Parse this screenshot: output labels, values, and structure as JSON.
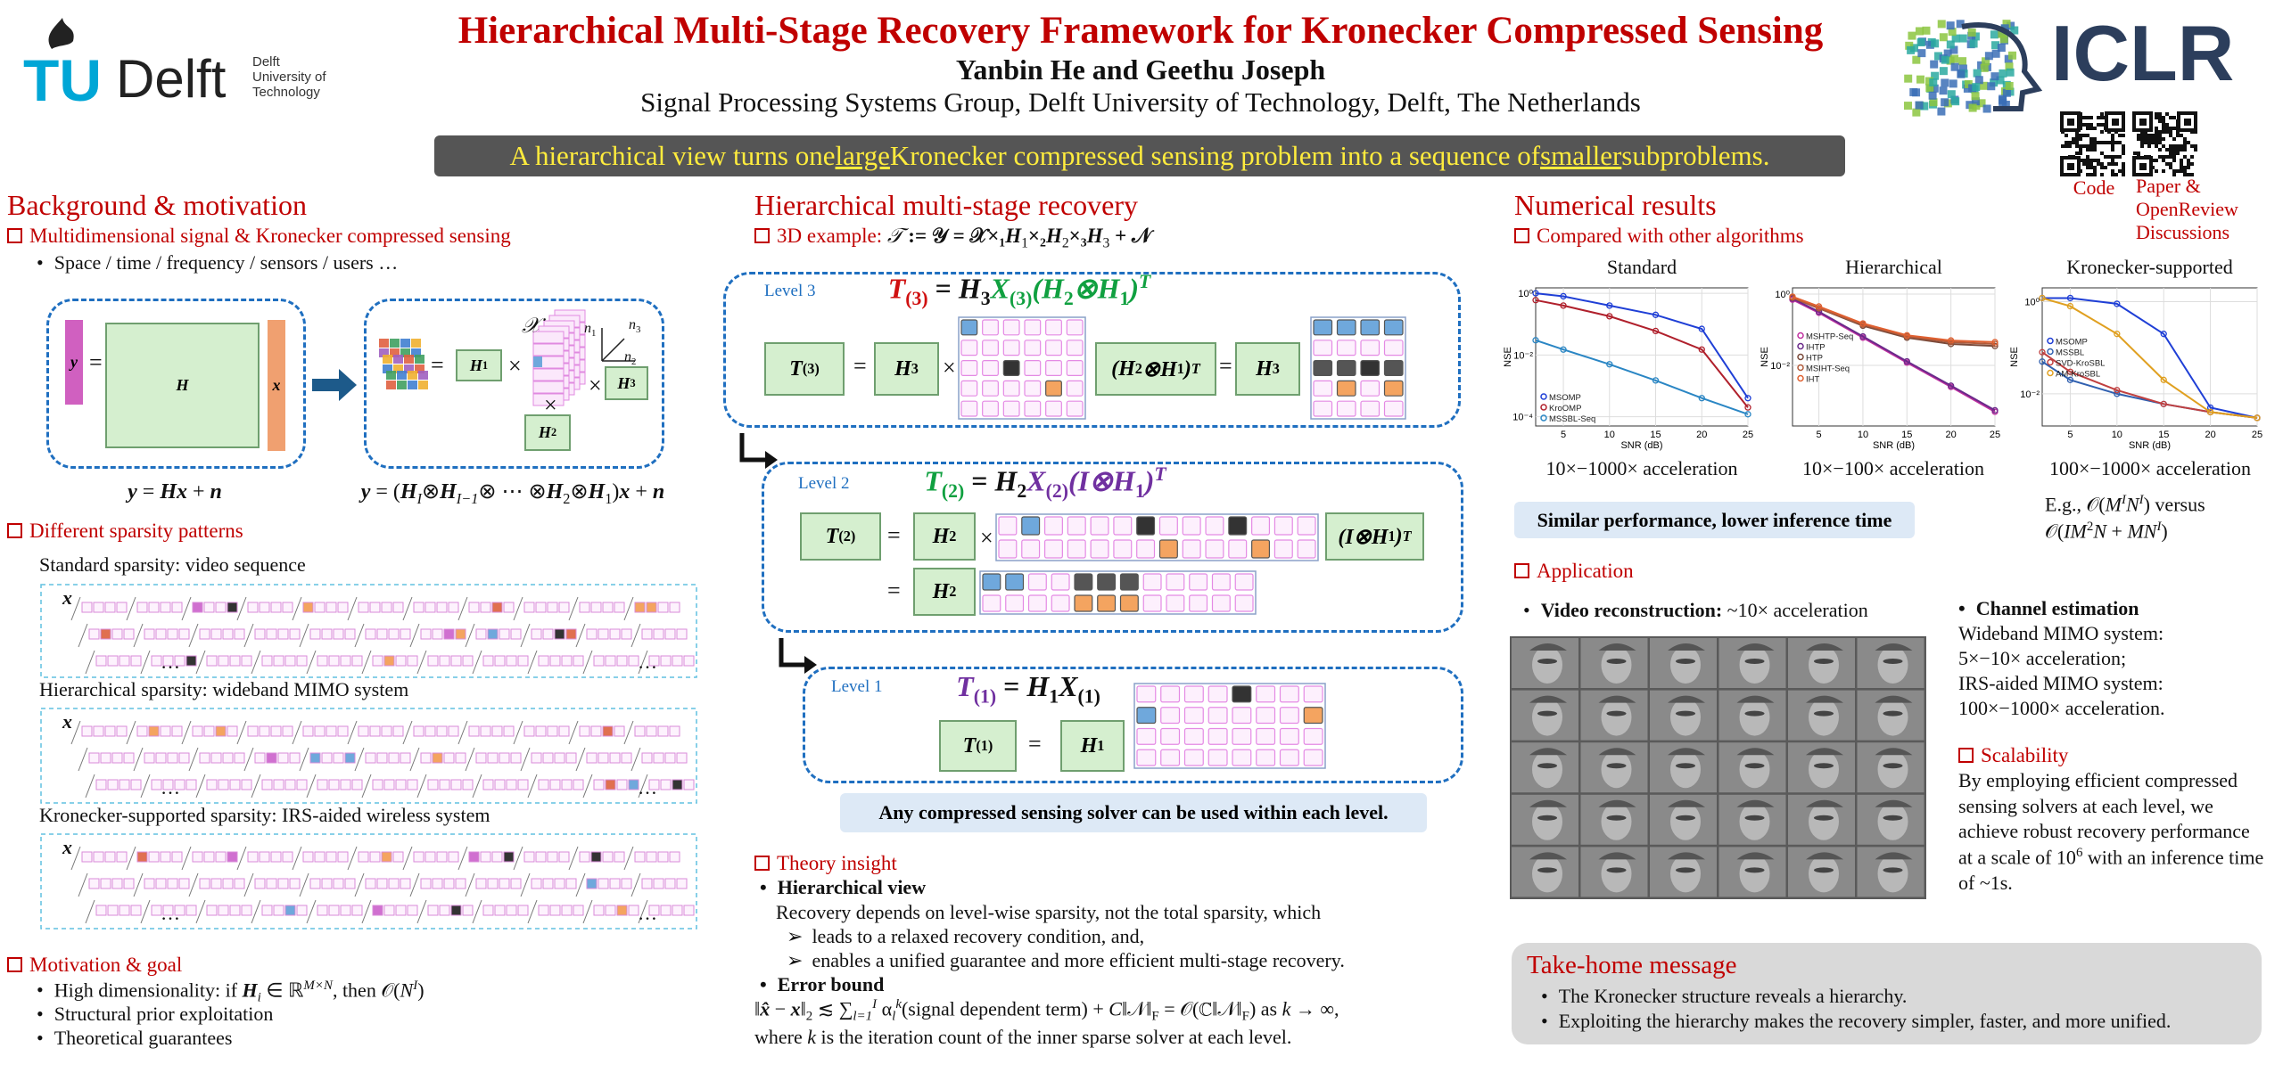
{
  "header": {
    "title": "Hierarchical Multi-Stage Recovery Framework for Kronecker Compressed Sensing",
    "authors": "Yanbin He and Geethu Joseph",
    "affiliation": "Signal Processing Systems Group, Delft University of Technology, Delft, The Netherlands",
    "tagline": [
      "A hierarchical view turns one ",
      [
        "large",
        "u"
      ],
      " Kronecker compressed sensing problem into a sequence of ",
      [
        "smaller",
        "u"
      ],
      " subproblems."
    ],
    "logo_tu": {
      "tu": "TU",
      "delft": "Delft",
      "lines": [
        "Delft",
        "University of",
        "Technology"
      ]
    },
    "logo_iclr": "ICLR",
    "links": {
      "code": "Code",
      "paper": "Paper & OpenReview Discussions"
    }
  },
  "left": {
    "heading": "Background & motivation",
    "s1": {
      "title": "Multidimensional signal & Kronecker compressed sensing",
      "bullet": "Space / time / frequency / sensors / users …",
      "diagram": {
        "y": [
          [
            "y",
            "bi"
          ]
        ],
        "eq": "=",
        "H": [
          [
            "H",
            "bi"
          ]
        ],
        "x": [
          [
            "x",
            "bi"
          ]
        ],
        "times": "×",
        "H1": [
          [
            "H",
            "bi"
          ],
          [
            "1",
            "sub b"
          ]
        ],
        "H2": [
          [
            "H",
            "bi"
          ],
          [
            "2",
            "sub b"
          ]
        ],
        "H3": [
          [
            "H",
            "bi"
          ],
          [
            "3",
            "sub b"
          ]
        ],
        "X": [
          [
            "𝒳",
            "i"
          ]
        ],
        "n1": [
          [
            "n",
            "i"
          ],
          [
            "1",
            "sub"
          ]
        ],
        "n2": [
          [
            "n",
            "i"
          ],
          [
            "2",
            "sub"
          ]
        ],
        "n3": [
          [
            "n",
            "i"
          ],
          [
            "3",
            "sub"
          ]
        ]
      },
      "eq1": [
        [
          "y",
          "bi"
        ],
        " = ",
        [
          "Hx",
          "bi"
        ],
        " + ",
        [
          "n",
          "bi"
        ]
      ],
      "eq2": [
        [
          "y",
          "bi"
        ],
        " = (",
        [
          "H",
          "bi"
        ],
        [
          "I",
          "sub i"
        ],
        "⊗",
        [
          "H",
          "bi"
        ],
        [
          "I−1",
          "sub i"
        ],
        "⊗ ⋯ ⊗",
        [
          "H",
          "bi"
        ],
        [
          "2",
          "sub"
        ],
        "⊗",
        [
          "H",
          "bi"
        ],
        [
          "1",
          "sub"
        ],
        ")",
        [
          "x",
          "bi"
        ],
        " + ",
        [
          "n",
          "bi"
        ]
      ]
    },
    "s2": {
      "title": "Different sparsity patterns",
      "patterns": [
        {
          "title": "Standard sparsity: video sequence",
          "label": [
            [
              "x",
              "bi"
            ]
          ],
          "more": "…"
        },
        {
          "title": "Hierarchical sparsity: wideband MIMO system",
          "label": [
            [
              "x",
              "bi"
            ]
          ],
          "more": "…"
        },
        {
          "title": "Kronecker-supported sparsity: IRS-aided wireless system",
          "label": [
            [
              "x",
              "bi"
            ]
          ],
          "more": "…"
        }
      ]
    },
    "s3": {
      "title": "Motivation & goal",
      "items": [
        [
          "High dimensionality: if ",
          [
            "H",
            "bi"
          ],
          [
            "i",
            "sub i"
          ],
          " ∈ ℝ",
          [
            "M×N",
            "sup i"
          ],
          ", then 𝒪(",
          [
            "N",
            "i"
          ],
          [
            "I",
            "sup i"
          ],
          ")"
        ],
        "Structural prior exploitation",
        "Theoretical guarantees"
      ]
    }
  },
  "middle": {
    "heading": "Hierarchical multi-stage recovery",
    "example": [
      "3D example: ",
      [
        "𝒯",
        "i blk"
      ],
      [
        " := 𝒴 = 𝒳×₁",
        "blk b"
      ],
      [
        "H",
        "bi blk"
      ],
      [
        "1",
        "sub blk"
      ],
      [
        "×₂",
        "blk b"
      ],
      [
        "H",
        "bi blk"
      ],
      [
        "2",
        "sub blk"
      ],
      [
        "×₃",
        "blk b"
      ],
      [
        "H",
        "bi blk"
      ],
      [
        "3",
        "sub blk"
      ],
      [
        " + 𝒩",
        "blk b"
      ]
    ],
    "levels": [
      {
        "label": "Level 3",
        "eq": [
          [
            "T",
            "bi red"
          ],
          [
            "(3)",
            "sub red b"
          ],
          [
            " = ",
            "b"
          ],
          [
            "H",
            "bi"
          ],
          [
            "3",
            "sub b"
          ],
          [
            "X",
            "bi green"
          ],
          [
            "(3)",
            "sub green b"
          ],
          [
            "(H",
            "bi green"
          ],
          [
            "2",
            "sub green b"
          ],
          [
            "⊗H",
            "bi green"
          ],
          [
            "1",
            "sub green b"
          ],
          [
            ")",
            "bi green"
          ],
          [
            "T",
            "sup bi green"
          ]
        ],
        "T": [
          [
            "T",
            "bi"
          ],
          [
            "(3)",
            "sub b"
          ]
        ],
        "H": [
          [
            "H",
            "bi"
          ],
          [
            "3",
            "sub b"
          ]
        ],
        "K": [
          [
            "(H",
            "bi"
          ],
          [
            "2",
            "sub b"
          ],
          [
            "⊗H",
            "bi"
          ],
          [
            "1",
            "sub b"
          ],
          [
            ")",
            "bi"
          ],
          [
            "T",
            "sup bi"
          ]
        ],
        "ops": [
          "=",
          "×",
          "="
        ]
      },
      {
        "label": "Level 2",
        "eq": [
          [
            "T",
            "bi green"
          ],
          [
            "(2)",
            "sub green b"
          ],
          [
            " = ",
            "b"
          ],
          [
            "H",
            "bi"
          ],
          [
            "2",
            "sub b"
          ],
          [
            "X",
            "bi purple"
          ],
          [
            "(2)",
            "sub purple b"
          ],
          [
            "(I⊗H",
            "bi purple"
          ],
          [
            "1",
            "sub purple b"
          ],
          [
            ")",
            "bi purple"
          ],
          [
            "T",
            "sup bi purple"
          ]
        ],
        "T": [
          [
            "T",
            "bi"
          ],
          [
            "(2)",
            "sub b"
          ]
        ],
        "H": [
          [
            "H",
            "bi"
          ],
          [
            "2",
            "sub b"
          ]
        ],
        "K": [
          [
            "(I⊗H",
            "bi"
          ],
          [
            "1",
            "sub b"
          ],
          [
            ")",
            "bi"
          ],
          [
            "T",
            "sup bi"
          ]
        ],
        "ops": [
          "=",
          "×",
          "="
        ]
      },
      {
        "label": "Level 1",
        "eq": [
          [
            "T",
            "bi purple"
          ],
          [
            "(1)",
            "sub purple b"
          ],
          [
            " = ",
            "b"
          ],
          [
            "H",
            "bi"
          ],
          [
            "1",
            "sub b"
          ],
          [
            "X",
            "bi"
          ],
          [
            "(1)",
            "sub b"
          ]
        ],
        "T": [
          [
            "T",
            "bi"
          ],
          [
            "(1)",
            "sub b"
          ]
        ],
        "H": [
          [
            "H",
            "bi"
          ],
          [
            "1",
            "sub b"
          ]
        ],
        "ops": [
          "="
        ]
      }
    ],
    "note": "Any compressed sensing solver can be used within each level.",
    "theory": {
      "title": "Theory insight",
      "view": "Hierarchical view",
      "text": "Recovery depends on level-wise sparsity, not the total sparsity, which",
      "points": [
        "leads to a relaxed recovery condition, and,",
        "enables a unified guarantee and more efficient multi-stage recovery."
      ],
      "bound_title": "Error bound",
      "bound": [
        "‖",
        [
          "x̂",
          "bi"
        ],
        " − ",
        [
          "x",
          "bi"
        ],
        "‖",
        [
          "2",
          "sub"
        ],
        " ≲ ∑",
        [
          "l=1",
          "sub i"
        ],
        [
          "I",
          "sup i"
        ],
        " α",
        [
          "l",
          "sub i"
        ],
        [
          "k",
          "sup i"
        ],
        "(signal dependent term) + ",
        [
          "C",
          "i"
        ],
        "‖𝒩‖",
        [
          "F",
          "sub"
        ],
        " = 𝒪(ℂ‖𝒩‖",
        [
          "F",
          "sub"
        ],
        ") as ",
        [
          "k",
          "i"
        ],
        " → ∞,"
      ],
      "where": [
        "where ",
        [
          "k",
          "i"
        ],
        " is the iteration count of the inner sparse solver at each level."
      ]
    }
  },
  "right": {
    "heading": "Numerical results",
    "compare": "Compared with other algorithms",
    "charts": [
      {
        "type": "line",
        "title": "Standard",
        "x": [
          2,
          5,
          10,
          15,
          20,
          25
        ],
        "xlim": [
          2,
          25
        ],
        "xticks": [
          5,
          10,
          15,
          20,
          25
        ],
        "ylim": [
          5e-05,
          1.5
        ],
        "yticks": [
          {
            "value": 1,
            "label": "10⁰"
          },
          {
            "value": 0.01,
            "label": "10⁻²"
          },
          {
            "value": 0.0001,
            "label": "10⁻⁴"
          }
        ],
        "log_y": true,
        "grid": true,
        "xlabel": "SNR (dB)",
        "ylabel": "NSE",
        "legend": "lower left",
        "series": [
          {
            "name": "MSOMP",
            "color": "#1f3fd6",
            "values": [
              1,
              0.8,
              0.4,
              0.2,
              0.07,
              0.0004
            ]
          },
          {
            "name": "KroOMP",
            "color": "#b0202c",
            "values": [
              0.6,
              0.4,
              0.18,
              0.06,
              0.015,
              0.0002
            ]
          },
          {
            "name": "MSSBL-Seq",
            "color": "#2a86c4",
            "values": [
              0.03,
              0.015,
              0.005,
              0.0015,
              0.0004,
              0.00012
            ]
          }
        ]
      },
      {
        "type": "line",
        "title": "Hierarchical",
        "x": [
          2,
          5,
          10,
          15,
          20,
          25
        ],
        "xlim": [
          2,
          25
        ],
        "xticks": [
          5,
          10,
          15,
          20,
          25
        ],
        "ylim": [
          0.0002,
          1.5
        ],
        "yticks": [
          {
            "value": 1,
            "label": "10⁰"
          },
          {
            "value": 0.01,
            "label": "10⁻²"
          }
        ],
        "log_y": true,
        "grid": true,
        "xlabel": "SNR (dB)",
        "ylabel": "NSE",
        "legend": "center left",
        "series": [
          {
            "name": "MSHTP-Seq",
            "color": "#c030a0",
            "values": [
              0.7,
              0.3,
              0.06,
              0.012,
              0.0025,
              0.0005
            ]
          },
          {
            "name": "IHTP",
            "color": "#6a2a8a",
            "values": [
              0.75,
              0.32,
              0.065,
              0.013,
              0.0027,
              0.00055
            ]
          },
          {
            "name": "HTP",
            "color": "#7a4a3a",
            "values": [
              0.8,
              0.4,
              0.13,
              0.06,
              0.04,
              0.035
            ]
          },
          {
            "name": "MSIHT-Seq",
            "color": "#b05a3a",
            "values": [
              0.8,
              0.4,
              0.14,
              0.065,
              0.045,
              0.04
            ]
          },
          {
            "name": "IHT",
            "color": "#e06030",
            "values": [
              0.85,
              0.45,
              0.15,
              0.07,
              0.05,
              0.045
            ]
          }
        ]
      },
      {
        "type": "line",
        "title": "Kronecker-supported",
        "x": [
          2,
          5,
          10,
          15,
          20,
          25
        ],
        "xlim": [
          2,
          25
        ],
        "xticks": [
          5,
          10,
          15,
          20,
          25
        ],
        "ylim": [
          0.002,
          2
        ],
        "yticks": [
          {
            "value": 1,
            "label": "10⁰"
          },
          {
            "value": 0.01,
            "label": "10⁻²"
          }
        ],
        "log_y": true,
        "grid": true,
        "xlabel": "SNR (dB)",
        "ylabel": "NSE",
        "legend": "center left",
        "series": [
          {
            "name": "MSOMP",
            "color": "#1f3fd6",
            "values": [
              1.2,
              1.2,
              0.9,
              0.2,
              0.005,
              0.003
            ]
          },
          {
            "name": "MSSBL",
            "color": "#3060b0",
            "values": [
              0.05,
              0.02,
              0.01,
              0.006,
              0.004,
              0.003
            ]
          },
          {
            "name": "SVD-KroSBL",
            "color": "#c04040",
            "values": [
              0.08,
              0.03,
              0.012,
              0.006,
              0.004,
              0.003
            ]
          },
          {
            "name": "AM-KroSBL",
            "color": "#e0a020",
            "values": [
              1.2,
              0.8,
              0.2,
              0.02,
              0.004,
              0.003
            ]
          }
        ]
      }
    ],
    "accel": [
      "10×−1000× acceleration",
      "10×−100× acceleration",
      "100×−1000× acceleration"
    ],
    "example": [
      [
        "E.g., 𝒪(",
        [
          "M",
          "i"
        ],
        [
          "I",
          "sup i"
        ],
        [
          "N",
          "i"
        ],
        [
          "I",
          "sup i"
        ],
        ") versus"
      ],
      [
        "𝒪(",
        [
          "IM",
          "i"
        ],
        [
          "2",
          "sup"
        ],
        [
          "N",
          "i"
        ],
        " + ",
        [
          "MN",
          "i"
        ],
        [
          "I",
          "sup i"
        ],
        ")"
      ]
    ],
    "summary": "Similar performance, lower inference time",
    "application": "Application",
    "video": [
      [
        "Video reconstruction:",
        "b"
      ],
      " ~10× acceleration"
    ],
    "channel": {
      "title": "Channel estimation",
      "lines": [
        "Wideband MIMO system:",
        "5×−10× acceleration;",
        "IRS-aided MIMO system:",
        "100×−1000× acceleration."
      ]
    },
    "scalability": {
      "title": "Scalability",
      "text": [
        "By employing efficient compressed sensing solvers at each level, we achieve robust recovery performance at a scale of 10",
        [
          "6",
          "sup"
        ],
        " with an inference time of ~1s."
      ]
    },
    "takehome": {
      "title": "Take-home message",
      "items": [
        "The Kronecker structure reveals a hierarchy.",
        "Exploiting the hierarchy makes the recovery simpler, faster, and more unified."
      ]
    }
  }
}
